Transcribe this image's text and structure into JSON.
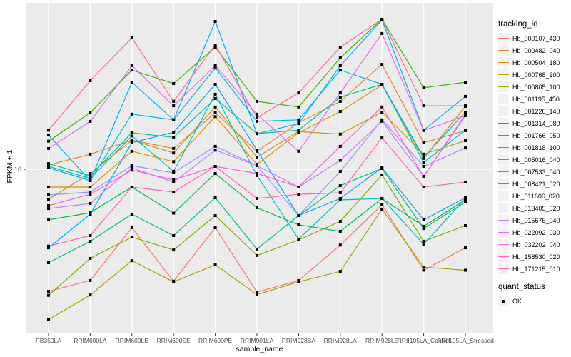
{
  "panel": {
    "bg": "#EBEBEB",
    "grid_color": "#FFFFFF",
    "tick_color": "#333333",
    "tick_label_color": "#4D4D4D",
    "marker_color": "#000000"
  },
  "chart_data": {
    "type": "line",
    "title": "",
    "xlabel": "sample_name",
    "ylabel": "FPKM + 1",
    "y_scale": "log10",
    "y_ticks": [
      10
    ],
    "ylim": [
      1.05,
      98
    ],
    "grid": "major-only",
    "legend_position": "right",
    "categories": [
      "PB350LA",
      "RRIM600LA",
      "RRIM600LE",
      "RRIM600SE",
      "RRIM600PE",
      "RRIM901LA",
      "RRIM928BA",
      "RRIM928LA",
      "RRIM928LE",
      "RRII105LA_Control",
      "RRII105LA_Stressed"
    ],
    "series": [
      {
        "name": "Hb_000107_430",
        "color": "#F8766D",
        "values": [
          1.87,
          2.17,
          4.48,
          2.15,
          4.48,
          1.85,
          2.17,
          3.53,
          6.13,
          2.5,
          3.4
        ]
      },
      {
        "name": "Hb_000482_040",
        "color": "#EA8331",
        "values": [
          10.6,
          12.3,
          14.9,
          13.3,
          21.7,
          12.8,
          18.9,
          25.4,
          42.2,
          14.4,
          17.0
        ]
      },
      {
        "name": "Hb_000504_180",
        "color": "#D89000",
        "values": [
          7.83,
          7.83,
          12.8,
          11.1,
          20.6,
          10.7,
          16.5,
          22.1,
          31.8,
          11.6,
          23.7
        ]
      },
      {
        "name": "Hb_000768_200",
        "color": "#C09B00",
        "values": [
          6.63,
          9.43,
          14.9,
          12.5,
          23.5,
          11.8,
          16.8,
          16.2,
          21.9,
          12.3,
          14.8
        ]
      },
      {
        "name": "Hb_000805_100",
        "color": "#A3A500",
        "values": [
          1.27,
          1.78,
          2.85,
          2.13,
          2.69,
          1.79,
          2.13,
          2.46,
          5.78,
          2.61,
          2.5
        ]
      },
      {
        "name": "Hb_001195_450",
        "color": "#7CAE00",
        "values": [
          1.77,
          2.94,
          3.94,
          3.3,
          5.29,
          3.06,
          3.79,
          4.89,
          9.25,
          3.72,
          4.61
        ]
      },
      {
        "name": "Hb_001226_140",
        "color": "#39B600",
        "values": [
          14.7,
          21.7,
          39.0,
          32.4,
          53.4,
          25.4,
          23.5,
          46.1,
          78.3,
          30.6,
          33.0
        ]
      },
      {
        "name": "Hb_001314_080",
        "color": "#00BB4E",
        "values": [
          4.99,
          5.5,
          7.83,
          5.47,
          9.43,
          5.89,
          4.66,
          4.26,
          6.69,
          4.57,
          6.56
        ]
      },
      {
        "name": "Hb_001766_050",
        "color": "#00BF7D",
        "values": [
          2.77,
          3.72,
          5.39,
          4.02,
          6.76,
          3.34,
          5.29,
          7.98,
          10.1,
          4.43,
          6.37
        ]
      },
      {
        "name": "Hb_001818_100",
        "color": "#00C1A3",
        "values": [
          10.8,
          9.16,
          16.5,
          15.5,
          26.4,
          16.3,
          17.1,
          26.9,
          32.1,
          11.0,
          17.1
        ]
      },
      {
        "name": "Hb_005016_040",
        "color": "#00BFC4",
        "values": [
          10.4,
          8.8,
          15.8,
          9.71,
          28.0,
          9.16,
          3.83,
          6.56,
          6.69,
          3.57,
          6.69
        ]
      },
      {
        "name": "Hb_007533_040",
        "color": "#00BAE0",
        "values": [
          10.2,
          8.55,
          21.3,
          19.7,
          40.2,
          19.3,
          19.7,
          39.0,
          32.1,
          11.8,
          21.9
        ]
      },
      {
        "name": "Hb_008421_020",
        "color": "#00B0F6",
        "values": [
          16.0,
          8.55,
          33.0,
          19.7,
          76.0,
          16.3,
          18.7,
          41.4,
          77.5,
          17.1,
          27.2
        ]
      },
      {
        "name": "Hb_011606_020",
        "color": "#00A5FF",
        "values": [
          3.4,
          5.39,
          14.4,
          16.6,
          32.1,
          13.0,
          5.29,
          6.69,
          10.2,
          4.99,
          6.76
        ]
      },
      {
        "name": "Hb_013405_020",
        "color": "#9590FF",
        "values": [
          7.03,
          7.31,
          10.5,
          9.52,
          13.7,
          10.5,
          5.29,
          9.71,
          19.7,
          10.4,
          13.4
        ]
      },
      {
        "name": "Hb_015675_040",
        "color": "#C77CFF",
        "values": [
          5.83,
          6.25,
          10.2,
          8.38,
          13.0,
          10.5,
          7.83,
          11.3,
          19.3,
          9.06,
          20.9
        ]
      },
      {
        "name": "Hb_022092_030",
        "color": "#E76BF3",
        "values": [
          13.3,
          19.3,
          41.4,
          23.9,
          41.4,
          21.3,
          12.8,
          28.5,
          64.4,
          17.0,
          20.9
        ]
      },
      {
        "name": "Hb_032202_040",
        "color": "#FA62DB",
        "values": [
          6.07,
          7.09,
          9.88,
          8.63,
          10.4,
          9.43,
          7.83,
          13.7,
          23.5,
          9.06,
          21.3
        ]
      },
      {
        "name": "Hb_158530_020",
        "color": "#FF62BC",
        "values": [
          3.48,
          4.02,
          7.83,
          7.31,
          10.4,
          6.69,
          7.09,
          7.24,
          15.4,
          7.83,
          8.38
        ]
      },
      {
        "name": "Hb_171215_010",
        "color": "#FF6A98",
        "values": [
          17.1,
          33.7,
          60.7,
          25.4,
          55.0,
          20.3,
          28.5,
          53.4,
          78.3,
          23.9,
          23.9
        ]
      }
    ],
    "legend": {
      "color_title": "tracking_id",
      "shape_title": "quant_status",
      "shape_label": "OK",
      "shape_marker": "black-square"
    }
  }
}
